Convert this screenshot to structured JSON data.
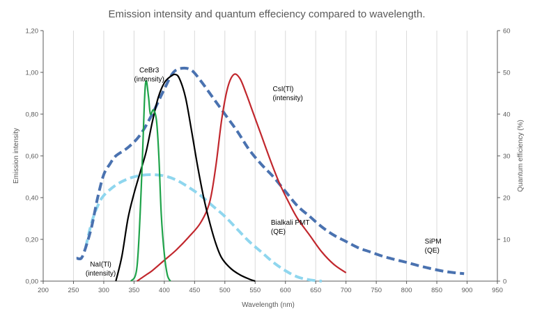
{
  "chart_data": {
    "type": "line",
    "title": "Emission intensity and quantum effeciency compared to wavelength.",
    "xlabel": "Wavelength (nm)",
    "ylabel_left": "Emission intensity",
    "ylabel_right": "Quantum efficiency (%)",
    "xlim": [
      200,
      950
    ],
    "ylim_left": [
      0,
      1.2
    ],
    "ylim_right": [
      0,
      60
    ],
    "x_ticks": [
      200,
      250,
      300,
      350,
      400,
      450,
      500,
      550,
      600,
      650,
      700,
      750,
      800,
      850,
      900,
      950
    ],
    "y_left_ticks": [
      "0,00",
      "0,20",
      "0,40",
      "0,60",
      "0,80",
      "1,00",
      "1,20"
    ],
    "y_left_tick_values": [
      0,
      0.2,
      0.4,
      0.6,
      0.8,
      1.0,
      1.2
    ],
    "y_right_ticks": [
      0,
      10,
      20,
      30,
      40,
      50,
      60
    ],
    "grid": "vertical",
    "series": [
      {
        "name": "CeBr3 (intensity)",
        "axis": "left",
        "color": "#1fa34a",
        "dash": "solid",
        "points": [
          [
            345,
            0.0
          ],
          [
            355,
            0.07
          ],
          [
            362,
            0.45
          ],
          [
            367,
            0.85
          ],
          [
            370,
            0.96
          ],
          [
            374,
            0.88
          ],
          [
            377,
            0.8
          ],
          [
            382,
            0.82
          ],
          [
            387,
            0.77
          ],
          [
            391,
            0.6
          ],
          [
            395,
            0.32
          ],
          [
            400,
            0.13
          ],
          [
            405,
            0.03
          ],
          [
            410,
            0.0
          ]
        ]
      },
      {
        "name": "NaI(Tl) (intensity)",
        "axis": "left",
        "color": "#000000",
        "dash": "solid",
        "points": [
          [
            320,
            0.0
          ],
          [
            330,
            0.12
          ],
          [
            340,
            0.3
          ],
          [
            350,
            0.42
          ],
          [
            360,
            0.52
          ],
          [
            370,
            0.62
          ],
          [
            380,
            0.76
          ],
          [
            390,
            0.88
          ],
          [
            400,
            0.95
          ],
          [
            410,
            0.98
          ],
          [
            418,
            0.99
          ],
          [
            425,
            0.97
          ],
          [
            435,
            0.88
          ],
          [
            445,
            0.72
          ],
          [
            455,
            0.55
          ],
          [
            465,
            0.4
          ],
          [
            475,
            0.28
          ],
          [
            485,
            0.18
          ],
          [
            495,
            0.11
          ],
          [
            510,
            0.06
          ],
          [
            525,
            0.03
          ],
          [
            540,
            0.01
          ],
          [
            550,
            0.0
          ]
        ]
      },
      {
        "name": "CsI(Tl) (intensity)",
        "axis": "left",
        "color": "#c1272d",
        "dash": "solid",
        "points": [
          [
            355,
            0.0
          ],
          [
            370,
            0.03
          ],
          [
            380,
            0.05
          ],
          [
            400,
            0.1
          ],
          [
            420,
            0.15
          ],
          [
            440,
            0.21
          ],
          [
            460,
            0.28
          ],
          [
            475,
            0.38
          ],
          [
            485,
            0.55
          ],
          [
            495,
            0.78
          ],
          [
            505,
            0.93
          ],
          [
            515,
            0.99
          ],
          [
            525,
            0.97
          ],
          [
            535,
            0.9
          ],
          [
            545,
            0.82
          ],
          [
            560,
            0.7
          ],
          [
            575,
            0.58
          ],
          [
            590,
            0.47
          ],
          [
            605,
            0.38
          ],
          [
            620,
            0.3
          ],
          [
            640,
            0.22
          ],
          [
            660,
            0.14
          ],
          [
            680,
            0.08
          ],
          [
            700,
            0.04
          ]
        ]
      },
      {
        "name": "Bialkali PMT (QE)",
        "axis": "right",
        "color": "#8fd6ee",
        "dash": "dashed",
        "points": [
          [
            270,
            8
          ],
          [
            280,
            14
          ],
          [
            290,
            18
          ],
          [
            300,
            20.5
          ],
          [
            320,
            23
          ],
          [
            340,
            24.5
          ],
          [
            360,
            25.3
          ],
          [
            380,
            25.5
          ],
          [
            400,
            25.2
          ],
          [
            420,
            24.2
          ],
          [
            440,
            22.5
          ],
          [
            460,
            20.5
          ],
          [
            480,
            18
          ],
          [
            500,
            15.5
          ],
          [
            520,
            12.5
          ],
          [
            540,
            9.5
          ],
          [
            560,
            7
          ],
          [
            580,
            4.5
          ],
          [
            600,
            2.5
          ],
          [
            620,
            1
          ],
          [
            640,
            0.3
          ],
          [
            660,
            0
          ]
        ]
      },
      {
        "name": "SiPM (QE)",
        "axis": "right",
        "color": "#4a72b0",
        "dash": "dashed",
        "points": [
          [
            255,
            5.5
          ],
          [
            263,
            5.5
          ],
          [
            270,
            8
          ],
          [
            280,
            13
          ],
          [
            290,
            20
          ],
          [
            300,
            25.5
          ],
          [
            310,
            28
          ],
          [
            320,
            30
          ],
          [
            340,
            32
          ],
          [
            360,
            35
          ],
          [
            380,
            40
          ],
          [
            400,
            46
          ],
          [
            415,
            50
          ],
          [
            430,
            51
          ],
          [
            445,
            50.5
          ],
          [
            460,
            48
          ],
          [
            480,
            44
          ],
          [
            500,
            40
          ],
          [
            520,
            36
          ],
          [
            540,
            31.5
          ],
          [
            560,
            28
          ],
          [
            580,
            25
          ],
          [
            600,
            21.5
          ],
          [
            620,
            18
          ],
          [
            640,
            15.5
          ],
          [
            660,
            13
          ],
          [
            680,
            11
          ],
          [
            700,
            9.5
          ],
          [
            720,
            8
          ],
          [
            740,
            7
          ],
          [
            760,
            6
          ],
          [
            780,
            5.2
          ],
          [
            800,
            4.5
          ],
          [
            820,
            3.7
          ],
          [
            840,
            3
          ],
          [
            860,
            2.4
          ],
          [
            880,
            2
          ],
          [
            895,
            1.8
          ]
        ]
      }
    ],
    "annotations": [
      {
        "lines": [
          "CeBr3",
          "(intensity)"
        ],
        "x": 375,
        "y": 1.0,
        "anchor": "middle"
      },
      {
        "lines": [
          "CsI(Tl)",
          "(intensity)"
        ],
        "x": 579,
        "y": 0.91,
        "anchor": "start"
      },
      {
        "lines": [
          "Bialkali PMT",
          "(QE)"
        ],
        "x": 576,
        "y": 0.27,
        "anchor": "start"
      },
      {
        "lines": [
          "SiPM",
          "(QE)"
        ],
        "x": 830,
        "y": 0.18,
        "anchor": "start"
      },
      {
        "lines": [
          "NaI(Tl)",
          "(intensity)"
        ],
        "x": 295,
        "y": 0.07,
        "anchor": "middle"
      }
    ]
  }
}
